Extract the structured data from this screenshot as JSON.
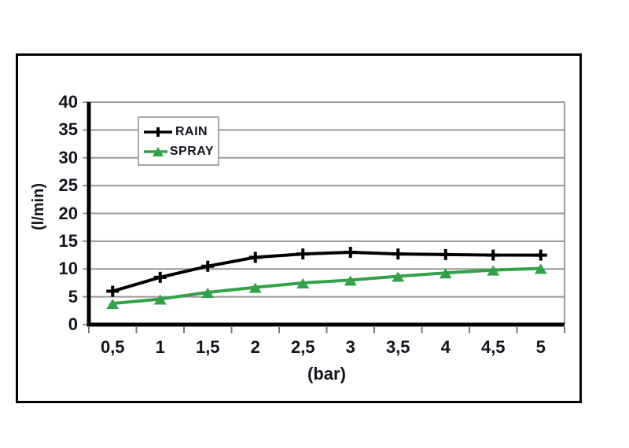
{
  "figure": {
    "background": "#ffffff",
    "frame_color": "#000000"
  },
  "chart_data": {
    "type": "line",
    "title": "",
    "xlabel": "(bar)",
    "ylabel": "(l/min)",
    "x": [
      0.5,
      1,
      1.5,
      2,
      2.5,
      3,
      3.5,
      4,
      4.5,
      5
    ],
    "x_tick_labels": [
      "0,5",
      "1",
      "1,5",
      "2",
      "2,5",
      "3",
      "3,5",
      "4",
      "4,5",
      "5"
    ],
    "y_ticks": [
      0,
      5,
      10,
      15,
      20,
      25,
      30,
      35,
      40
    ],
    "ylim": [
      0,
      40
    ],
    "grid": true,
    "legend_position": "top-left-inside",
    "series": [
      {
        "name": "RAIN",
        "color": "#000000",
        "marker": "plus",
        "values": [
          6,
          8.5,
          10.5,
          12.1,
          12.7,
          13,
          12.7,
          12.6,
          12.5,
          12.5
        ]
      },
      {
        "name": "SPRAY",
        "color": "#32a14a",
        "marker": "triangle",
        "values": [
          3.8,
          4.6,
          5.8,
          6.7,
          7.5,
          8,
          8.7,
          9.3,
          9.8,
          10.1
        ]
      }
    ],
    "colors": {
      "grid": "#999999",
      "axis": "#000000",
      "tick": "#777777",
      "text": "#14141e",
      "legend_border": "#a8a8a8"
    }
  }
}
